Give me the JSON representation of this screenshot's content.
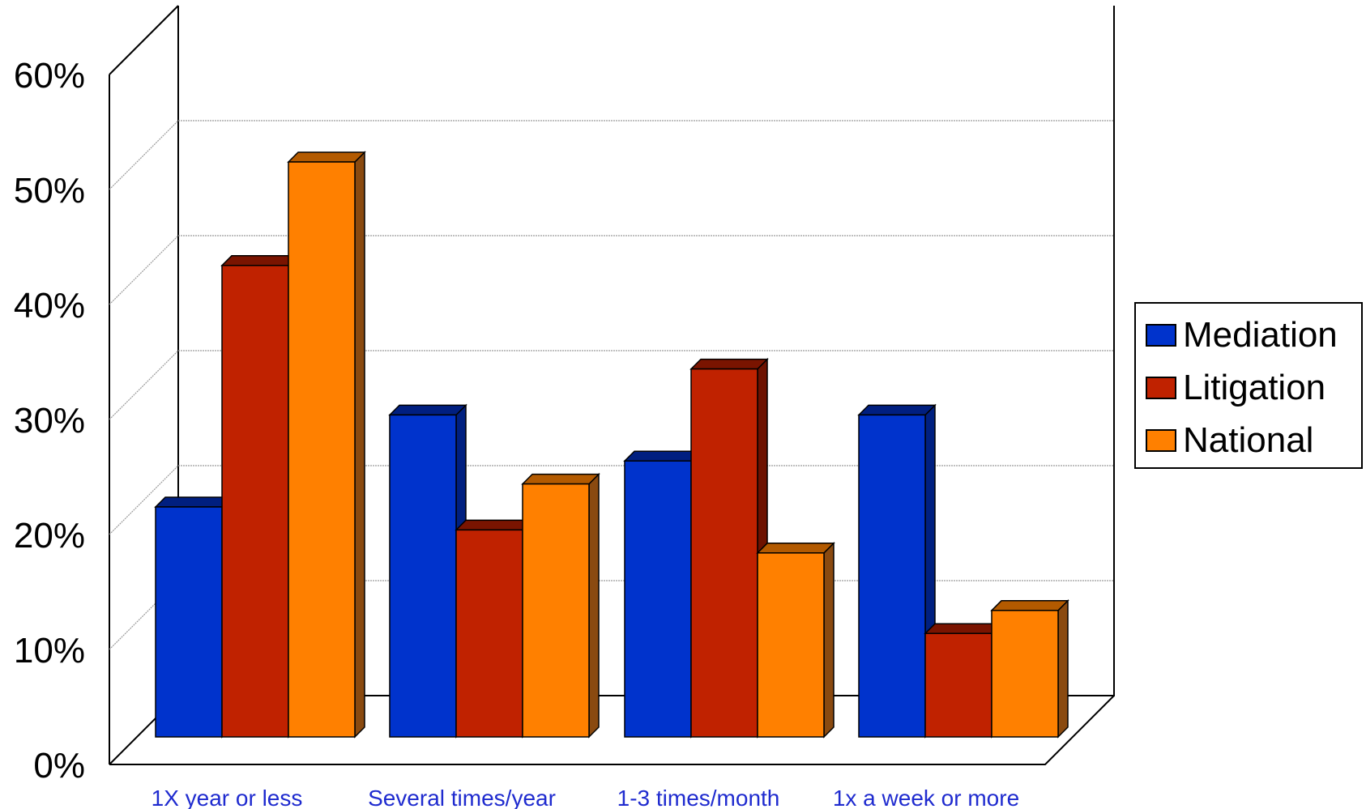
{
  "chart_data": {
    "type": "bar",
    "categories": [
      "1X year or less",
      "Several times/year",
      "1-3 times/month",
      "1x a week or more"
    ],
    "series": [
      {
        "name": "Mediation",
        "values": [
          20,
          28,
          24,
          28
        ],
        "color": "#0033CC",
        "top_color": "#001F80",
        "side_color": "#002080"
      },
      {
        "name": "Litigation",
        "values": [
          41,
          18,
          32,
          9
        ],
        "color": "#C02200",
        "top_color": "#7A1400",
        "side_color": "#6E1200"
      },
      {
        "name": "National",
        "values": [
          50,
          22,
          16,
          11
        ],
        "color": "#FF8000",
        "top_color": "#B35A00",
        "side_color": "#8A4A10"
      }
    ],
    "ylim": [
      0,
      60
    ],
    "yticks": [
      "0%",
      "10%",
      "20%",
      "30%",
      "40%",
      "50%",
      "60%"
    ],
    "grid": true,
    "legend_position": "right",
    "xlabel_color": "#1F2BCF"
  }
}
